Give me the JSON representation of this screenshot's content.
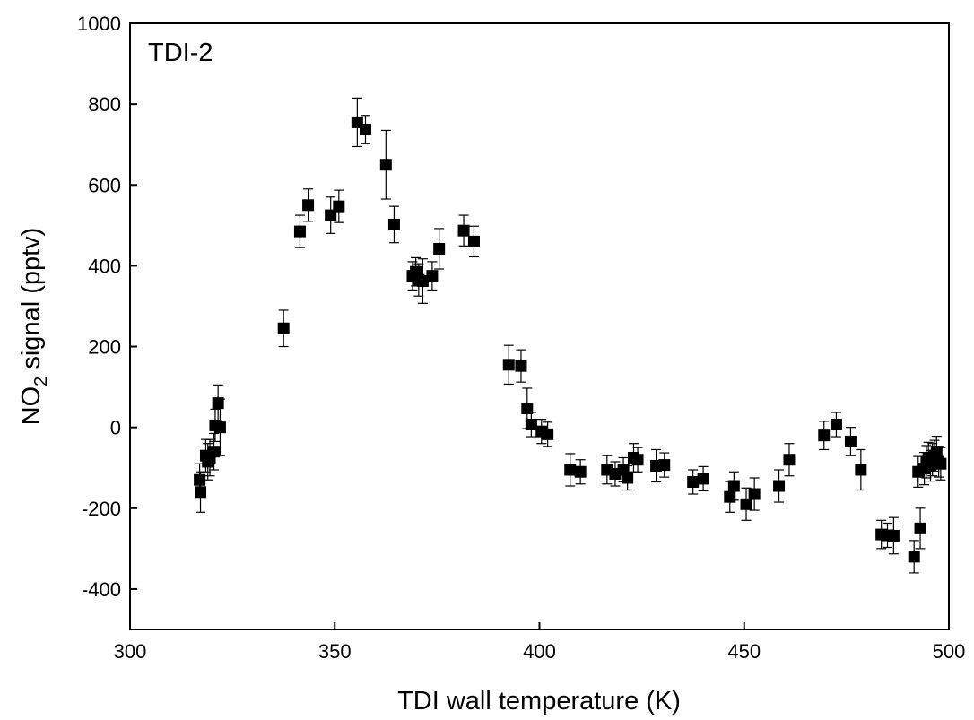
{
  "chart_data": {
    "type": "scatter",
    "panel_label": "TDI-2",
    "xlabel": "TDI wall temperature (K)",
    "ylabel_main": "NO",
    "ylabel_sub": "2",
    "ylabel_rest": " signal (pptv)",
    "xlim": [
      300,
      500
    ],
    "ylim": [
      -500,
      1000
    ],
    "xticks": [
      300,
      350,
      400,
      450,
      500
    ],
    "yticks": [
      -400,
      -200,
      0,
      200,
      400,
      600,
      800,
      1000
    ],
    "grid": false,
    "marker": "square",
    "color": "#000000",
    "points": [
      {
        "x": 317.0,
        "y": -130,
        "err": 40
      },
      {
        "x": 317.2,
        "y": -160,
        "err": 50
      },
      {
        "x": 318.5,
        "y": -70,
        "err": 40
      },
      {
        "x": 319.0,
        "y": -85,
        "err": 45
      },
      {
        "x": 319.5,
        "y": -75,
        "err": 45
      },
      {
        "x": 320.5,
        "y": -60,
        "err": 45
      },
      {
        "x": 320.8,
        "y": 5,
        "err": 40
      },
      {
        "x": 321.5,
        "y": 60,
        "err": 45
      },
      {
        "x": 322.0,
        "y": 0,
        "err": 70
      },
      {
        "x": 337.5,
        "y": 245,
        "err": 45
      },
      {
        "x": 341.5,
        "y": 485,
        "err": 40
      },
      {
        "x": 343.5,
        "y": 550,
        "err": 40
      },
      {
        "x": 349.0,
        "y": 525,
        "err": 45
      },
      {
        "x": 351.0,
        "y": 547,
        "err": 40
      },
      {
        "x": 355.5,
        "y": 755,
        "err": 60
      },
      {
        "x": 357.5,
        "y": 737,
        "err": 35
      },
      {
        "x": 362.5,
        "y": 650,
        "err": 85
      },
      {
        "x": 364.5,
        "y": 502,
        "err": 45
      },
      {
        "x": 369.0,
        "y": 375,
        "err": 35
      },
      {
        "x": 369.8,
        "y": 385,
        "err": 35
      },
      {
        "x": 370.5,
        "y": 365,
        "err": 40
      },
      {
        "x": 371.5,
        "y": 362,
        "err": 55
      },
      {
        "x": 373.8,
        "y": 375,
        "err": 35
      },
      {
        "x": 375.5,
        "y": 442,
        "err": 50
      },
      {
        "x": 381.5,
        "y": 487,
        "err": 38
      },
      {
        "x": 384.0,
        "y": 460,
        "err": 38
      },
      {
        "x": 392.5,
        "y": 155,
        "err": 48
      },
      {
        "x": 395.5,
        "y": 152,
        "err": 40
      },
      {
        "x": 397.0,
        "y": 47,
        "err": 50
      },
      {
        "x": 398.0,
        "y": 7,
        "err": 30
      },
      {
        "x": 400.5,
        "y": -10,
        "err": 30
      },
      {
        "x": 402.0,
        "y": -17,
        "err": 30
      },
      {
        "x": 407.5,
        "y": -105,
        "err": 40
      },
      {
        "x": 410.0,
        "y": -110,
        "err": 30
      },
      {
        "x": 416.5,
        "y": -105,
        "err": 35
      },
      {
        "x": 418.5,
        "y": -115,
        "err": 30
      },
      {
        "x": 420.5,
        "y": -105,
        "err": 30
      },
      {
        "x": 421.5,
        "y": -125,
        "err": 30
      },
      {
        "x": 423.0,
        "y": -75,
        "err": 35
      },
      {
        "x": 424.0,
        "y": -80,
        "err": 30
      },
      {
        "x": 428.5,
        "y": -95,
        "err": 40
      },
      {
        "x": 430.5,
        "y": -93,
        "err": 30
      },
      {
        "x": 437.5,
        "y": -135,
        "err": 30
      },
      {
        "x": 440.0,
        "y": -127,
        "err": 30
      },
      {
        "x": 446.5,
        "y": -172,
        "err": 38
      },
      {
        "x": 447.5,
        "y": -145,
        "err": 35
      },
      {
        "x": 450.5,
        "y": -190,
        "err": 40
      },
      {
        "x": 452.5,
        "y": -165,
        "err": 40
      },
      {
        "x": 458.5,
        "y": -145,
        "err": 40
      },
      {
        "x": 461.0,
        "y": -80,
        "err": 40
      },
      {
        "x": 469.5,
        "y": -20,
        "err": 35
      },
      {
        "x": 472.5,
        "y": 7,
        "err": 30
      },
      {
        "x": 476.0,
        "y": -35,
        "err": 35
      },
      {
        "x": 478.5,
        "y": -105,
        "err": 50
      },
      {
        "x": 483.5,
        "y": -265,
        "err": 35
      },
      {
        "x": 485.0,
        "y": -267,
        "err": 30
      },
      {
        "x": 486.5,
        "y": -268,
        "err": 45
      },
      {
        "x": 491.5,
        "y": -320,
        "err": 40
      },
      {
        "x": 492.5,
        "y": -110,
        "err": 38
      },
      {
        "x": 493.0,
        "y": -250,
        "err": 50
      },
      {
        "x": 494.0,
        "y": -102,
        "err": 40
      },
      {
        "x": 494.5,
        "y": -85,
        "err": 40
      },
      {
        "x": 495.0,
        "y": -75,
        "err": 38
      },
      {
        "x": 495.5,
        "y": -95,
        "err": 38
      },
      {
        "x": 496.0,
        "y": -80,
        "err": 40
      },
      {
        "x": 496.5,
        "y": -70,
        "err": 38
      },
      {
        "x": 497.0,
        "y": -60,
        "err": 38
      },
      {
        "x": 497.5,
        "y": -85,
        "err": 38
      },
      {
        "x": 498.0,
        "y": -90,
        "err": 40
      }
    ]
  }
}
